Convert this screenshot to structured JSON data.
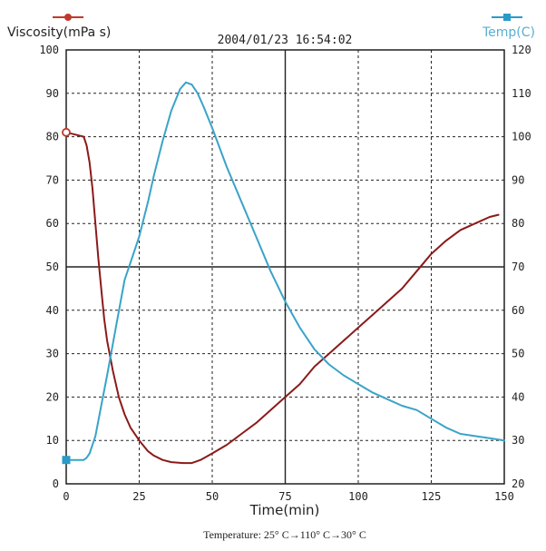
{
  "chart_data": {
    "type": "line",
    "timestamp": "2004/01/23 16:54:02",
    "xlabel": "Time(min)",
    "ylabel_left": "Viscosity(mPa s)",
    "ylabel_right": "Temp(C)",
    "caption": "Temperature: 25° C→110° C→30° C",
    "xlim": [
      0,
      150
    ],
    "ylim_left": [
      0,
      100
    ],
    "ylim_right": [
      20,
      120
    ],
    "x_ticks": [
      0,
      25,
      50,
      75,
      100,
      125,
      150
    ],
    "y_left_ticks": [
      0,
      10,
      20,
      30,
      40,
      50,
      60,
      70,
      80,
      90,
      100
    ],
    "y_right_ticks": [
      20,
      30,
      40,
      50,
      60,
      70,
      80,
      90,
      100,
      110,
      120
    ],
    "grid": true,
    "series": [
      {
        "name": "Viscosity(mPa s)",
        "axis": "left",
        "color": "#8b1a1a",
        "marker_color": "#c0392b",
        "x": [
          0,
          3,
          6,
          7,
          8,
          9,
          10,
          11,
          12,
          13,
          14,
          16,
          18,
          20,
          22,
          25,
          28,
          30,
          33,
          36,
          40,
          43,
          46,
          50,
          55,
          60,
          65,
          70,
          75,
          80,
          85,
          90,
          95,
          100,
          105,
          110,
          115,
          120,
          125,
          130,
          135,
          140,
          145,
          148
        ],
        "y": [
          81,
          80.5,
          80,
          78,
          74,
          68,
          60,
          52,
          45,
          38,
          33,
          26,
          20,
          16,
          13,
          10,
          7.5,
          6.5,
          5.5,
          5,
          4.8,
          4.8,
          5.5,
          7,
          9,
          11.5,
          14,
          17,
          20,
          23,
          27,
          30,
          33,
          36,
          39,
          42,
          45,
          49,
          53,
          56,
          58.5,
          60,
          61.5,
          62
        ]
      },
      {
        "name": "Temp(C)",
        "axis": "right",
        "color": "#3aa3c8",
        "marker_color": "#2a9bc9",
        "x": [
          0,
          4,
          6,
          7,
          8,
          10,
          12,
          14,
          17,
          20,
          23,
          25,
          28,
          30,
          33,
          36,
          39,
          41,
          43,
          45,
          47,
          50,
          55,
          60,
          65,
          70,
          75,
          80,
          85,
          90,
          95,
          100,
          105,
          110,
          115,
          120,
          125,
          130,
          135,
          140,
          145,
          150
        ],
        "y": [
          25.5,
          25.5,
          25.5,
          26,
          27,
          31,
          38,
          45,
          56,
          67,
          73,
          77,
          85,
          91,
          99,
          106,
          111,
          112.5,
          112,
          110,
          107,
          102,
          93,
          85,
          77,
          69,
          62,
          56,
          51,
          47.5,
          45,
          43,
          41,
          39.5,
          38,
          37,
          35,
          33,
          31.5,
          31,
          30.5,
          30
        ]
      }
    ]
  }
}
